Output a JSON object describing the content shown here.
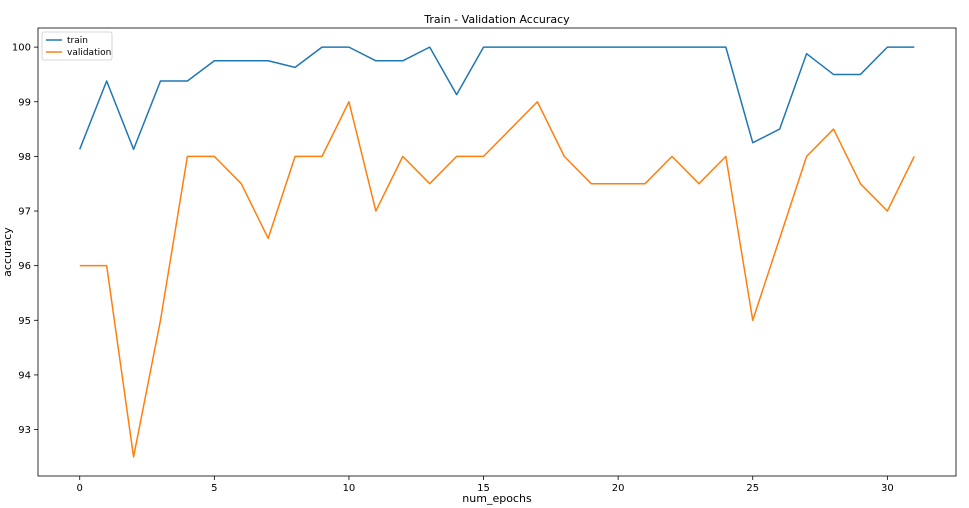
{
  "chart_data": {
    "type": "line",
    "title": "Train - Validation Accuracy",
    "xlabel": "num_epochs",
    "ylabel": "accuracy",
    "xlim": [
      -1.55,
      32.55
    ],
    "ylim": [
      92.15,
      100.35
    ],
    "xticks": [
      0,
      5,
      10,
      15,
      20,
      25,
      30
    ],
    "yticks": [
      93,
      94,
      95,
      96,
      97,
      98,
      99,
      100
    ],
    "legend_position": "top-left",
    "grid": false,
    "x": [
      0,
      1,
      2,
      3,
      4,
      5,
      6,
      7,
      8,
      9,
      10,
      11,
      12,
      13,
      14,
      15,
      16,
      17,
      18,
      19,
      20,
      21,
      22,
      23,
      24,
      25,
      26,
      27,
      28,
      29,
      30,
      31
    ],
    "series": [
      {
        "name": "train",
        "color": "#1f77b4",
        "values": [
          98.13,
          99.38,
          98.13,
          99.38,
          99.38,
          99.75,
          99.75,
          99.75,
          99.63,
          100,
          100,
          99.75,
          99.75,
          100,
          99.13,
          100,
          100,
          100,
          100,
          100,
          100,
          100,
          100,
          100,
          100,
          98.25,
          98.5,
          99.88,
          99.5,
          99.5,
          100,
          100
        ]
      },
      {
        "name": "validation",
        "color": "#ff7f0e",
        "values": [
          96,
          96,
          92.5,
          95,
          98,
          98,
          97.5,
          96.5,
          98,
          98,
          99,
          97,
          98,
          97.5,
          98,
          98,
          98.5,
          99,
          98,
          97.5,
          97.5,
          97.5,
          98,
          97.5,
          98,
          95,
          96.5,
          98,
          98.5,
          97.5,
          97,
          98
        ]
      }
    ]
  }
}
